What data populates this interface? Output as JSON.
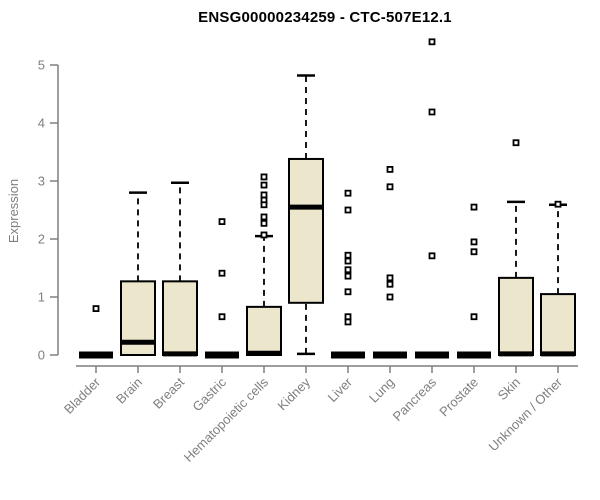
{
  "chart_data": {
    "type": "boxplot",
    "title": "ENSG00000234259 - CTC-507E12.1",
    "ylabel": "Expression",
    "xlabel": "",
    "ylim": [
      0,
      5.5
    ],
    "yticks": [
      0,
      1,
      2,
      3,
      4,
      5
    ],
    "grid": false,
    "legend": null,
    "categories": [
      "Bladder",
      "Brain",
      "Breast",
      "Gastric",
      "Hematopoietic cells",
      "Kidney",
      "Liver",
      "Lung",
      "Pancreas",
      "Prostate",
      "Skin",
      "Unknown / Other"
    ],
    "boxes": [
      {
        "category": "Bladder",
        "q1": 0,
        "median": 0,
        "q3": 0,
        "whisker_low": 0,
        "whisker_high": 0,
        "outliers": [
          0.8
        ]
      },
      {
        "category": "Brain",
        "q1": 0,
        "median": 0.22,
        "q3": 1.27,
        "whisker_low": 0,
        "whisker_high": 2.8,
        "outliers": []
      },
      {
        "category": "Breast",
        "q1": 0,
        "median": 0.02,
        "q3": 1.27,
        "whisker_low": 0,
        "whisker_high": 2.97,
        "outliers": []
      },
      {
        "category": "Gastric",
        "q1": 0,
        "median": 0,
        "q3": 0,
        "whisker_low": 0,
        "whisker_high": 0,
        "outliers": [
          2.3,
          1.41,
          0.66
        ]
      },
      {
        "category": "Hematopoietic cells",
        "q1": 0,
        "median": 0.03,
        "q3": 0.83,
        "whisker_low": 0,
        "whisker_high": 2.05,
        "outliers": [
          3.07,
          2.93,
          2.76,
          2.67,
          2.59,
          2.38,
          2.27,
          2.07
        ]
      },
      {
        "category": "Kidney",
        "q1": 0.9,
        "median": 2.55,
        "q3": 3.38,
        "whisker_low": 0.02,
        "whisker_high": 4.82,
        "outliers": []
      },
      {
        "category": "Liver",
        "q1": 0,
        "median": 0,
        "q3": 0,
        "whisker_low": 0,
        "whisker_high": 0,
        "outliers": [
          2.79,
          2.5,
          1.72,
          1.62,
          1.47,
          1.36,
          1.09,
          0.66,
          0.57
        ]
      },
      {
        "category": "Lung",
        "q1": 0,
        "median": 0,
        "q3": 0,
        "whisker_low": 0,
        "whisker_high": 0,
        "outliers": [
          3.2,
          2.9,
          1.33,
          1.22,
          1.0
        ]
      },
      {
        "category": "Pancreas",
        "q1": 0,
        "median": 0,
        "q3": 0,
        "whisker_low": 0,
        "whisker_high": 0,
        "outliers": [
          5.4,
          4.19,
          1.71
        ]
      },
      {
        "category": "Prostate",
        "q1": 0,
        "median": 0,
        "q3": 0,
        "whisker_low": 0,
        "whisker_high": 0,
        "outliers": [
          2.55,
          1.95,
          1.78,
          0.66
        ]
      },
      {
        "category": "Skin",
        "q1": 0,
        "median": 0.02,
        "q3": 1.33,
        "whisker_low": 0,
        "whisker_high": 2.64,
        "outliers": [
          3.66
        ]
      },
      {
        "category": "Unknown / Other",
        "q1": 0,
        "median": 0.02,
        "q3": 1.05,
        "whisker_low": 0,
        "whisker_high": 2.59,
        "outliers": [
          2.6
        ]
      }
    ],
    "colors": {
      "box_fill": "#ECE6CC",
      "box_stroke": "#000000",
      "median": "#000000",
      "whisker": "#000000",
      "outlier_stroke": "#000000",
      "axis": "#7f7f7f",
      "tick_label": "#7f7f7f",
      "title": "#000000"
    }
  }
}
